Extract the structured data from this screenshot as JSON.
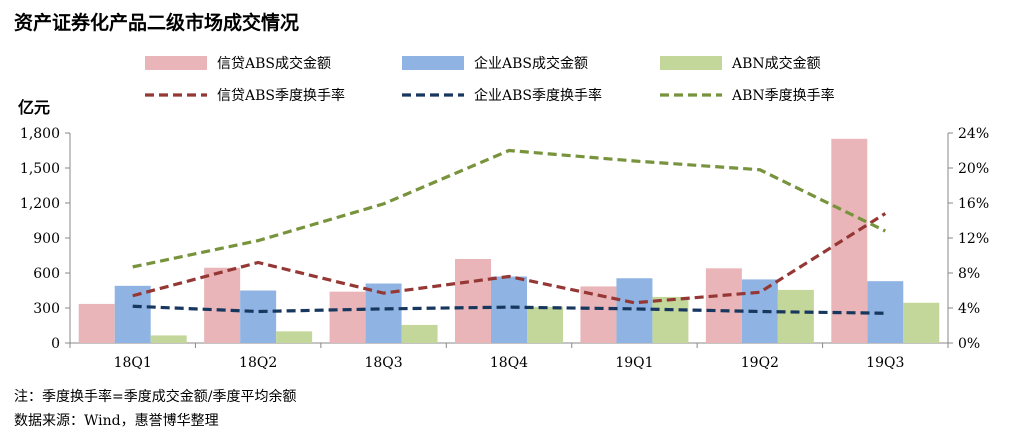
{
  "title": "资产证券化产品二级市场成交情况",
  "notes": {
    "note1": "注：季度换手率=季度成交金额/季度平均余额",
    "note2": "数据来源：Wind，惠誉博华整理"
  },
  "chart_data": {
    "type": "bar",
    "categories": [
      "18Q1",
      "18Q2",
      "18Q3",
      "18Q4",
      "19Q1",
      "19Q2",
      "19Q3"
    ],
    "y_left_unit": "亿元",
    "y_left_lim": [
      0,
      1800
    ],
    "y_left_ticks": [
      "0",
      "300",
      "600",
      "900",
      "1,200",
      "1,500",
      "1,800"
    ],
    "y_right_lim": [
      0,
      24
    ],
    "y_right_ticks": [
      "0%",
      "4%",
      "8%",
      "12%",
      "16%",
      "20%",
      "24%"
    ],
    "grid": false,
    "legend_position": "top",
    "bars": [
      {
        "name": "信贷ABS成交金额",
        "color": "#e9b5b8",
        "values": [
          335,
          645,
          440,
          720,
          485,
          640,
          1750
        ]
      },
      {
        "name": "企业ABS成交金额",
        "color": "#8fb4e3",
        "values": [
          490,
          450,
          510,
          570,
          555,
          545,
          530
        ]
      },
      {
        "name": "ABN成交金额",
        "color": "#c4d79b",
        "values": [
          65,
          100,
          155,
          310,
          395,
          455,
          345
        ]
      }
    ],
    "lines": [
      {
        "name": "信贷ABS季度换手率",
        "color": "#953735",
        "axis": "right",
        "values": [
          5.4,
          9.2,
          5.7,
          7.6,
          4.6,
          5.8,
          14.8
        ]
      },
      {
        "name": "企业ABS季度换手率",
        "color": "#17375e",
        "axis": "right",
        "values": [
          4.2,
          3.6,
          3.9,
          4.1,
          3.9,
          3.6,
          3.4
        ]
      },
      {
        "name": "ABN季度换手率",
        "color": "#77933c",
        "axis": "right",
        "values": [
          8.7,
          11.7,
          15.9,
          22.0,
          20.8,
          19.8,
          12.8
        ]
      }
    ]
  }
}
